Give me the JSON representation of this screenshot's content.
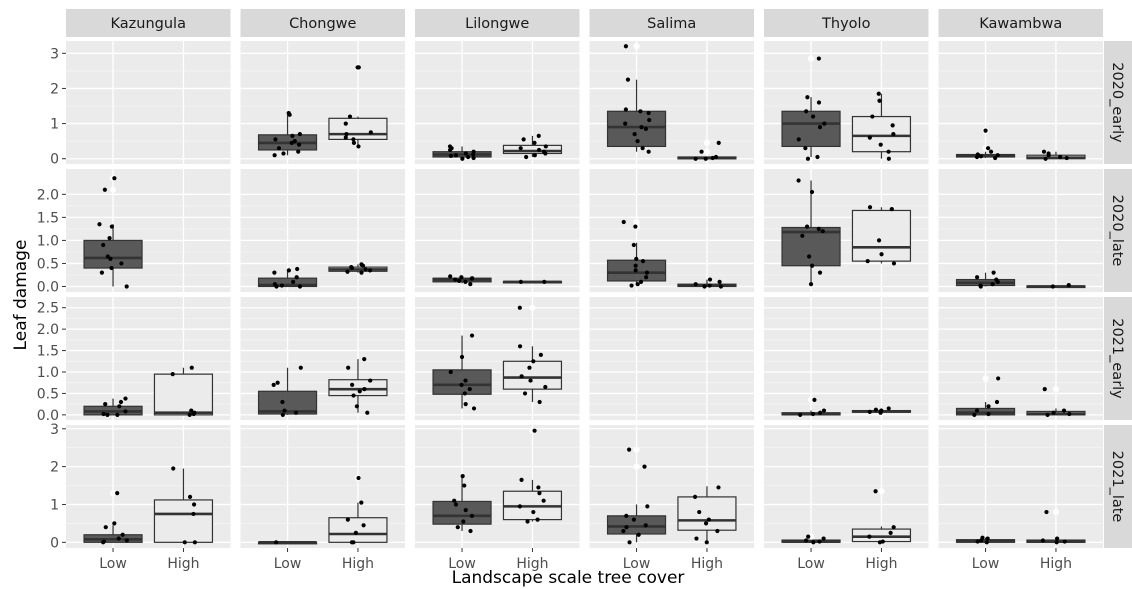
{
  "chart_data": {
    "type": "boxplot",
    "xlabel": "Landscape scale tree cover",
    "ylabel": "Leaf damage",
    "columns": [
      "Kazungula",
      "Chongwe",
      "Lilongwe",
      "Salima",
      "Thyolo",
      "Kawambwa"
    ],
    "rows": [
      "2020_early",
      "2020_late",
      "2021_early",
      "2021_late"
    ],
    "categories": [
      "Low",
      "High"
    ],
    "colors": {
      "Low": "#595959",
      "High": "#ebebeb",
      "panel": "#ebebeb",
      "strip": "#d9d9d9",
      "points": "#000000"
    },
    "row_axes": [
      {
        "ylim": [
          -0.15,
          3.35
        ],
        "ticks": [
          0,
          1,
          2,
          3
        ],
        "tick_labels": [
          "0",
          "1",
          "2",
          "3"
        ]
      },
      {
        "ylim": [
          -0.12,
          2.55
        ],
        "ticks": [
          0,
          0.5,
          1,
          1.5,
          2
        ],
        "tick_labels": [
          "0.0",
          "0.5",
          "1.0",
          "1.5",
          "2.0"
        ]
      },
      {
        "ylim": [
          -0.12,
          2.75
        ],
        "ticks": [
          0,
          0.5,
          1,
          1.5,
          2,
          2.5
        ],
        "tick_labels": [
          "0.0",
          "0.5",
          "1.0",
          "1.5",
          "2.0",
          "2.5"
        ]
      },
      {
        "ylim": [
          -0.15,
          3.1
        ],
        "ticks": [
          0,
          1,
          2,
          3
        ],
        "tick_labels": [
          "0",
          "1",
          "2",
          "3"
        ]
      }
    ],
    "panels": {
      "2020_early": {
        "Kazungula": {
          "Low": null,
          "High": null
        },
        "Chongwe": {
          "Low": {
            "min": 0.1,
            "q1": 0.25,
            "median": 0.45,
            "q3": 0.68,
            "max": 1.3,
            "outliers": [],
            "points": [
              0.1,
              0.15,
              0.2,
              0.3,
              0.4,
              0.45,
              0.5,
              0.55,
              0.65,
              0.7,
              1.25,
              1.3
            ]
          },
          "High": {
            "min": 0.35,
            "q1": 0.55,
            "median": 0.7,
            "q3": 1.15,
            "max": 1.2,
            "outliers": [
              2.6,
              2.6
            ],
            "points": [
              0.35,
              0.45,
              0.55,
              0.6,
              0.7,
              0.75,
              1.0,
              1.2,
              2.6,
              2.6
            ]
          }
        },
        "Lilongwe": {
          "Low": {
            "min": 0.0,
            "q1": 0.05,
            "median": 0.12,
            "q3": 0.2,
            "max": 0.35,
            "outliers": [],
            "points": [
              0.0,
              0.02,
              0.05,
              0.08,
              0.1,
              0.12,
              0.15,
              0.2,
              0.25,
              0.3,
              0.35
            ]
          },
          "High": {
            "min": 0.05,
            "q1": 0.15,
            "median": 0.22,
            "q3": 0.38,
            "max": 0.65,
            "outliers": [],
            "points": [
              0.05,
              0.1,
              0.15,
              0.2,
              0.25,
              0.3,
              0.35,
              0.45,
              0.55,
              0.65
            ]
          }
        },
        "Salima": {
          "Low": {
            "min": 0.2,
            "q1": 0.35,
            "median": 0.9,
            "q3": 1.35,
            "max": 2.25,
            "outliers": [
              3.2
            ],
            "points": [
              0.2,
              0.3,
              0.5,
              0.7,
              0.85,
              0.9,
              1.0,
              1.1,
              1.3,
              1.35,
              1.4,
              2.25,
              3.2
            ]
          },
          "High": {
            "min": 0.0,
            "q1": 0.0,
            "median": 0.02,
            "q3": 0.05,
            "max": 0.05,
            "outliers": [
              0.2,
              0.45
            ],
            "points": [
              0.0,
              0.0,
              0.02,
              0.05,
              0.2,
              0.45
            ]
          }
        },
        "Thyolo": {
          "Low": {
            "min": 0.05,
            "q1": 0.35,
            "median": 1.0,
            "q3": 1.35,
            "max": 1.75,
            "outliers": [
              2.85
            ],
            "points": [
              0.0,
              0.05,
              0.3,
              0.55,
              0.9,
              1.0,
              1.2,
              1.35,
              1.6,
              1.75,
              2.85
            ]
          },
          "High": {
            "min": 0.0,
            "q1": 0.2,
            "median": 0.65,
            "q3": 1.2,
            "max": 1.85,
            "outliers": [],
            "points": [
              0.0,
              0.2,
              0.4,
              0.6,
              0.7,
              0.95,
              1.2,
              1.65,
              1.85
            ]
          }
        },
        "Kawambwa": {
          "Low": {
            "min": 0.02,
            "q1": 0.05,
            "median": 0.08,
            "q3": 0.12,
            "max": 0.2,
            "outliers": [
              0.3,
              0.8
            ],
            "points": [
              0.02,
              0.05,
              0.07,
              0.1,
              0.12,
              0.2,
              0.3,
              0.8
            ]
          },
          "High": {
            "min": 0.0,
            "q1": 0.0,
            "median": 0.03,
            "q3": 0.1,
            "max": 0.2,
            "outliers": [],
            "points": [
              0.0,
              0.02,
              0.05,
              0.1,
              0.15,
              0.2
            ]
          }
        }
      },
      "2020_late": {
        "Kazungula": {
          "Low": {
            "min": 0.0,
            "q1": 0.4,
            "median": 0.62,
            "q3": 1.0,
            "max": 1.35,
            "outliers": [
              2.1,
              2.35
            ],
            "points": [
              0.0,
              0.3,
              0.4,
              0.5,
              0.6,
              0.65,
              0.9,
              1.05,
              1.3,
              1.35,
              2.1,
              2.35
            ]
          },
          "High": null
        },
        "Chongwe": {
          "Low": {
            "min": 0.0,
            "q1": 0.0,
            "median": 0.03,
            "q3": 0.18,
            "max": 0.38,
            "outliers": [],
            "points": [
              0.0,
              0.0,
              0.02,
              0.05,
              0.1,
              0.2,
              0.3,
              0.35,
              0.38
            ]
          },
          "High": {
            "min": 0.3,
            "q1": 0.33,
            "median": 0.37,
            "q3": 0.42,
            "max": 0.48,
            "outliers": [],
            "points": [
              0.3,
              0.32,
              0.35,
              0.37,
              0.4,
              0.42,
              0.45,
              0.48
            ]
          }
        },
        "Lilongwe": {
          "Low": {
            "min": 0.07,
            "q1": 0.1,
            "median": 0.15,
            "q3": 0.18,
            "max": 0.22,
            "outliers": [],
            "points": [
              0.05,
              0.1,
              0.12,
              0.15,
              0.17,
              0.18,
              0.2,
              0.22
            ]
          },
          "High": {
            "min": 0.08,
            "q1": 0.09,
            "median": 0.1,
            "q3": 0.11,
            "max": 0.12,
            "outliers": [],
            "points": [
              0.1,
              0.1
            ]
          }
        },
        "Salima": {
          "Low": {
            "min": 0.02,
            "q1": 0.12,
            "median": 0.3,
            "q3": 0.57,
            "max": 0.95,
            "outliers": [
              1.3,
              1.4
            ],
            "points": [
              0.02,
              0.05,
              0.1,
              0.2,
              0.3,
              0.35,
              0.45,
              0.55,
              0.6,
              0.9,
              1.3,
              1.4
            ]
          },
          "High": {
            "min": 0.0,
            "q1": 0.0,
            "median": 0.02,
            "q3": 0.05,
            "max": 0.15,
            "outliers": [],
            "points": [
              0.0,
              0.0,
              0.02,
              0.05,
              0.1,
              0.15
            ]
          }
        },
        "Thyolo": {
          "Low": {
            "min": 0.05,
            "q1": 0.45,
            "median": 1.18,
            "q3": 1.28,
            "max": 2.3,
            "outliers": [],
            "points": [
              0.05,
              0.3,
              0.45,
              0.65,
              1.1,
              1.2,
              1.25,
              1.3,
              2.05,
              2.3
            ]
          },
          "High": {
            "min": 0.5,
            "q1": 0.55,
            "median": 0.85,
            "q3": 1.65,
            "max": 1.72,
            "outliers": [],
            "points": [
              0.5,
              0.55,
              0.7,
              1.0,
              1.68,
              1.72
            ]
          }
        },
        "Kawambwa": {
          "Low": {
            "min": 0.0,
            "q1": 0.02,
            "median": 0.08,
            "q3": 0.15,
            "max": 0.3,
            "outliers": [],
            "points": [
              0.0,
              0.02,
              0.05,
              0.1,
              0.15,
              0.2,
              0.3
            ]
          },
          "High": {
            "min": 0.0,
            "q1": 0.0,
            "median": 0.0,
            "q3": 0.01,
            "max": 0.02,
            "outliers": [],
            "points": [
              0.0,
              0.03
            ]
          }
        }
      },
      "2021_early": {
        "Kazungula": {
          "Low": {
            "min": 0.0,
            "q1": 0.0,
            "median": 0.08,
            "q3": 0.2,
            "max": 0.38,
            "outliers": [],
            "points": [
              0.0,
              0.0,
              0.02,
              0.08,
              0.2,
              0.25,
              0.3,
              0.38
            ]
          },
          "High": {
            "min": 0.0,
            "q1": 0.0,
            "median": 0.05,
            "q3": 0.95,
            "max": 1.1,
            "outliers": [],
            "points": [
              0.0,
              0.02,
              0.05,
              0.1,
              0.95,
              1.1
            ]
          }
        },
        "Chongwe": {
          "Low": {
            "min": 0.0,
            "q1": 0.02,
            "median": 0.08,
            "q3": 0.55,
            "max": 1.1,
            "outliers": [],
            "points": [
              0.0,
              0.05,
              0.1,
              0.3,
              0.7,
              0.75,
              1.1
            ]
          },
          "High": {
            "min": 0.05,
            "q1": 0.45,
            "median": 0.6,
            "q3": 0.82,
            "max": 1.3,
            "outliers": [],
            "points": [
              0.05,
              0.2,
              0.45,
              0.55,
              0.6,
              0.7,
              0.8,
              1.1,
              1.3
            ]
          }
        },
        "Lilongwe": {
          "Low": {
            "min": 0.15,
            "q1": 0.48,
            "median": 0.7,
            "q3": 1.05,
            "max": 1.85,
            "outliers": [],
            "points": [
              0.15,
              0.25,
              0.5,
              0.6,
              0.7,
              0.8,
              1.0,
              1.35,
              1.85
            ]
          },
          "High": {
            "min": 0.3,
            "q1": 0.6,
            "median": 0.87,
            "q3": 1.25,
            "max": 1.6,
            "outliers": [
              2.5
            ],
            "points": [
              0.3,
              0.5,
              0.65,
              0.8,
              0.9,
              1.1,
              1.25,
              1.4,
              1.6,
              2.5
            ]
          }
        },
        "Salima": {
          "Low": null,
          "High": null
        },
        "Thyolo": {
          "Low": {
            "min": 0.0,
            "q1": 0.0,
            "median": 0.02,
            "q3": 0.05,
            "max": 0.1,
            "outliers": [
              0.35
            ],
            "points": [
              0.0,
              0.02,
              0.05,
              0.1,
              0.35
            ]
          },
          "High": {
            "min": 0.05,
            "q1": 0.06,
            "median": 0.08,
            "q3": 0.1,
            "max": 0.15,
            "outliers": [],
            "points": [
              0.05,
              0.07,
              0.1,
              0.12,
              0.15
            ]
          }
        },
        "Kawambwa": {
          "Low": {
            "min": 0.0,
            "q1": 0.0,
            "median": 0.05,
            "q3": 0.15,
            "max": 0.3,
            "outliers": [
              0.85
            ],
            "points": [
              0.0,
              0.02,
              0.1,
              0.2,
              0.3,
              0.85
            ]
          },
          "High": {
            "min": 0.0,
            "q1": 0.0,
            "median": 0.03,
            "q3": 0.08,
            "max": 0.15,
            "outliers": [
              0.6
            ],
            "points": [
              0.0,
              0.02,
              0.05,
              0.1,
              0.6
            ]
          }
        }
      },
      "2021_late": {
        "Kazungula": {
          "Low": {
            "min": 0.0,
            "q1": 0.0,
            "median": 0.08,
            "q3": 0.2,
            "max": 0.45,
            "outliers": [
              1.3
            ],
            "points": [
              0.0,
              0.02,
              0.05,
              0.1,
              0.2,
              0.4,
              0.5,
              1.3
            ]
          },
          "High": {
            "min": 0.0,
            "q1": 0.0,
            "median": 0.75,
            "q3": 1.12,
            "max": 1.95,
            "outliers": [],
            "points": [
              0.0,
              0.0,
              0.75,
              1.0,
              1.2,
              1.95
            ]
          }
        },
        "Chongwe": {
          "Low": {
            "min": 0.0,
            "q1": 0.0,
            "median": 0.0,
            "q3": 0.0,
            "max": 0.0,
            "outliers": [],
            "points": [
              0.0
            ]
          },
          "High": {
            "min": 0.0,
            "q1": 0.0,
            "median": 0.22,
            "q3": 0.65,
            "max": 1.05,
            "outliers": [
              1.7
            ],
            "points": [
              0.0,
              0.0,
              0.25,
              0.45,
              0.6,
              1.05,
              1.7
            ]
          }
        },
        "Lilongwe": {
          "Low": {
            "min": 0.3,
            "q1": 0.48,
            "median": 0.7,
            "q3": 1.08,
            "max": 1.75,
            "outliers": [],
            "points": [
              0.3,
              0.4,
              0.55,
              0.7,
              0.85,
              1.0,
              1.1,
              1.5,
              1.75
            ]
          },
          "High": {
            "min": 0.55,
            "q1": 0.6,
            "median": 0.95,
            "q3": 1.35,
            "max": 1.65,
            "outliers": [
              2.95
            ],
            "points": [
              0.55,
              0.6,
              0.8,
              0.95,
              1.1,
              1.3,
              1.45,
              1.65,
              2.95
            ]
          }
        },
        "Salima": {
          "Low": {
            "min": 0.0,
            "q1": 0.22,
            "median": 0.42,
            "q3": 0.7,
            "max": 1.0,
            "outliers": [
              2.0,
              2.45
            ],
            "points": [
              0.0,
              0.2,
              0.3,
              0.4,
              0.45,
              0.6,
              0.7,
              0.95,
              2.0,
              2.45
            ]
          },
          "High": {
            "min": 0.0,
            "q1": 0.32,
            "median": 0.58,
            "q3": 1.2,
            "max": 1.48,
            "outliers": [],
            "points": [
              0.0,
              0.1,
              0.3,
              0.5,
              0.6,
              0.8,
              1.2,
              1.45
            ]
          }
        },
        "Thyolo": {
          "Low": {
            "min": 0.0,
            "q1": 0.0,
            "median": 0.02,
            "q3": 0.06,
            "max": 0.1,
            "outliers": [
              0.15
            ],
            "points": [
              0.0,
              0.02,
              0.05,
              0.1,
              0.15
            ]
          },
          "High": {
            "min": 0.0,
            "q1": 0.02,
            "median": 0.15,
            "q3": 0.35,
            "max": 0.42,
            "outliers": [
              1.35
            ],
            "points": [
              0.0,
              0.02,
              0.15,
              0.25,
              0.4,
              1.35
            ]
          }
        },
        "Kawambwa": {
          "Low": {
            "min": 0.0,
            "q1": 0.0,
            "median": 0.03,
            "q3": 0.07,
            "max": 0.12,
            "outliers": [],
            "points": [
              0.0,
              0.02,
              0.05,
              0.1,
              0.12
            ]
          },
          "High": {
            "min": 0.0,
            "q1": 0.0,
            "median": 0.02,
            "q3": 0.06,
            "max": 0.1,
            "outliers": [
              0.8
            ],
            "points": [
              0.0,
              0.02,
              0.05,
              0.1,
              0.8
            ]
          }
        }
      }
    }
  }
}
